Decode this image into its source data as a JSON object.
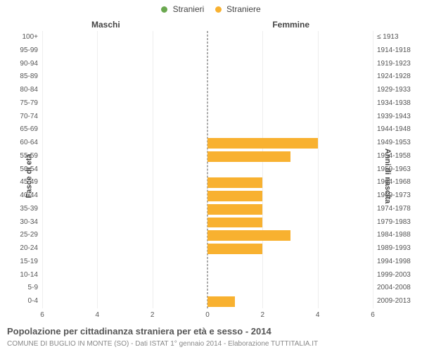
{
  "legend": [
    {
      "label": "Stranieri",
      "color": "#6aa84f"
    },
    {
      "label": "Straniere",
      "color": "#f8b130"
    }
  ],
  "side_labels": {
    "left": "Maschi",
    "right": "Femmine"
  },
  "yaxis_title_left": "Fasce di età",
  "yaxis_title_right": "Anni di nascita",
  "title": "Popolazione per cittadinanza straniera per età e sesso - 2014",
  "subtitle": "COMUNE DI BUGLIO IN MONTE (SO) - Dati ISTAT 1° gennaio 2014 - Elaborazione TUTTITALIA.IT",
  "colors": {
    "male_series": "#6aa84f",
    "female_series": "#f8b130",
    "background": "#ffffff",
    "grid": "#eeeeee",
    "centerline": "#555555"
  },
  "xaxis": {
    "max": 6,
    "ticks": [
      6,
      4,
      2,
      0,
      2,
      4,
      6
    ]
  },
  "rows": [
    {
      "age": "100+",
      "birth": "≤ 1913",
      "m": 0,
      "f": 0
    },
    {
      "age": "95-99",
      "birth": "1914-1918",
      "m": 0,
      "f": 0
    },
    {
      "age": "90-94",
      "birth": "1919-1923",
      "m": 0,
      "f": 0
    },
    {
      "age": "85-89",
      "birth": "1924-1928",
      "m": 0,
      "f": 0
    },
    {
      "age": "80-84",
      "birth": "1929-1933",
      "m": 0,
      "f": 0
    },
    {
      "age": "75-79",
      "birth": "1934-1938",
      "m": 0,
      "f": 0
    },
    {
      "age": "70-74",
      "birth": "1939-1943",
      "m": 0,
      "f": 0
    },
    {
      "age": "65-69",
      "birth": "1944-1948",
      "m": 0,
      "f": 0
    },
    {
      "age": "60-64",
      "birth": "1949-1953",
      "m": 0,
      "f": 4
    },
    {
      "age": "55-59",
      "birth": "1954-1958",
      "m": 0,
      "f": 3
    },
    {
      "age": "50-54",
      "birth": "1959-1963",
      "m": 0,
      "f": 0
    },
    {
      "age": "45-49",
      "birth": "1964-1968",
      "m": 0,
      "f": 2
    },
    {
      "age": "40-44",
      "birth": "1969-1973",
      "m": 0,
      "f": 2
    },
    {
      "age": "35-39",
      "birth": "1974-1978",
      "m": 0,
      "f": 2
    },
    {
      "age": "30-34",
      "birth": "1979-1983",
      "m": 0,
      "f": 2
    },
    {
      "age": "25-29",
      "birth": "1984-1988",
      "m": 0,
      "f": 3
    },
    {
      "age": "20-24",
      "birth": "1989-1993",
      "m": 0,
      "f": 2
    },
    {
      "age": "15-19",
      "birth": "1994-1998",
      "m": 0,
      "f": 0
    },
    {
      "age": "10-14",
      "birth": "1999-2003",
      "m": 0,
      "f": 0
    },
    {
      "age": "5-9",
      "birth": "2004-2008",
      "m": 0,
      "f": 0
    },
    {
      "age": "0-4",
      "birth": "2009-2013",
      "m": 0,
      "f": 1
    }
  ]
}
